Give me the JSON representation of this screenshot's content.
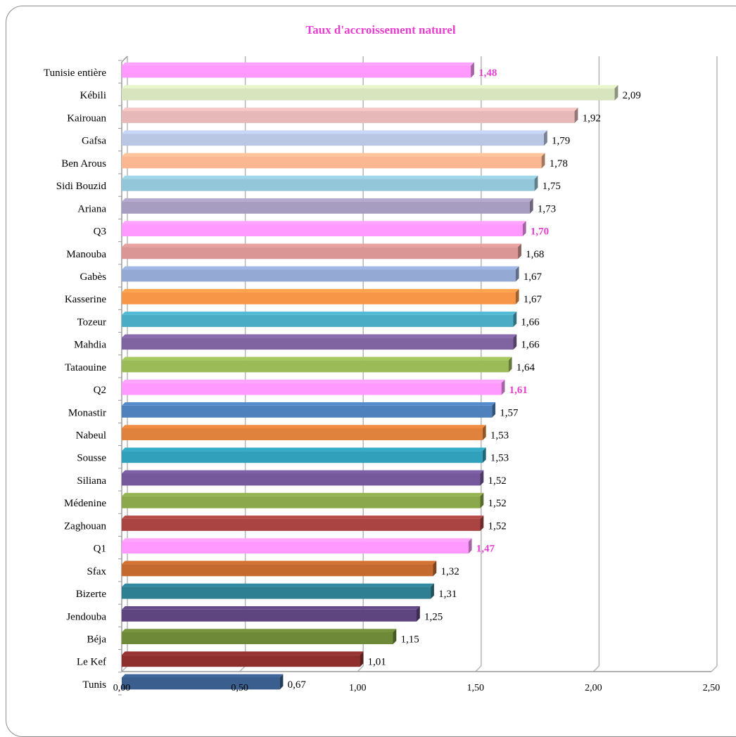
{
  "chart_data": {
    "type": "bar",
    "orientation": "horizontal",
    "title": "Taux d'accroissement naturel",
    "xlim": [
      0,
      2.5
    ],
    "xticks": [
      "0,00",
      "0,50",
      "1,00",
      "1,50",
      "2,00",
      "2,50"
    ],
    "grid": true,
    "legend": "none",
    "categories": [
      "Tunisie entière",
      "Kébili",
      "Kairouan",
      "Gafsa",
      "Ben Arous",
      "Sidi Bouzid",
      "Ariana",
      "Q3",
      "Manouba",
      "Gabès",
      "Kasserine",
      "Tozeur",
      "Mahdia",
      "Tataouine",
      "Q2",
      "Monastir",
      "Nabeul",
      "Sousse",
      "Siliana",
      "Médenine",
      "Zaghouan",
      "Q1",
      "Sfax",
      "Bizerte",
      "Jendouba",
      "Béja",
      "Le Kef",
      "Tunis"
    ],
    "values": [
      1.48,
      2.09,
      1.92,
      1.79,
      1.78,
      1.75,
      1.73,
      1.7,
      1.68,
      1.67,
      1.67,
      1.66,
      1.66,
      1.64,
      1.61,
      1.57,
      1.53,
      1.53,
      1.52,
      1.52,
      1.52,
      1.47,
      1.32,
      1.31,
      1.25,
      1.15,
      1.01,
      0.67
    ],
    "value_labels": [
      "1,48",
      "2,09",
      "1,92",
      "1,79",
      "1,78",
      "1,75",
      "1,73",
      "1,70",
      "1,68",
      "1,67",
      "1,67",
      "1,66",
      "1,66",
      "1,64",
      "1,61",
      "1,57",
      "1,53",
      "1,53",
      "1,52",
      "1,52",
      "1,52",
      "1,47",
      "1,32",
      "1,31",
      "1,25",
      "1,15",
      "1,01",
      "0,67"
    ],
    "colors": [
      "#FF99FF",
      "#D7E4BD",
      "#E6B9B8",
      "#B9C7E5",
      "#FAB792",
      "#93C6D8",
      "#A79DC0",
      "#FF99FF",
      "#D99694",
      "#95A9D5",
      "#F79646",
      "#4BACC6",
      "#8064A2",
      "#9BBB59",
      "#FF99FF",
      "#4F81BD",
      "#E0823C",
      "#31A0BA",
      "#76599C",
      "#8BA84C",
      "#A94442",
      "#FF99FF",
      "#C46A2F",
      "#2F7F93",
      "#5E4580",
      "#6E8A39",
      "#8E2F2D",
      "#3A5F8F"
    ],
    "highlighted": [
      true,
      false,
      false,
      false,
      false,
      false,
      false,
      true,
      false,
      false,
      false,
      false,
      false,
      false,
      true,
      false,
      false,
      false,
      false,
      false,
      false,
      true,
      false,
      false,
      false,
      false,
      false,
      false
    ],
    "highlight_color": "#E83ED0",
    "title_color": "#E83ED0"
  }
}
